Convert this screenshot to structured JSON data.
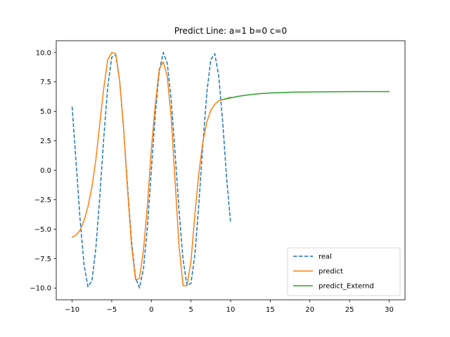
{
  "chart_data": {
    "type": "line",
    "title": "Predict Line: a=1 b=0 c=0",
    "xlabel": "",
    "ylabel": "",
    "xlim": [
      -12,
      32
    ],
    "ylim": [
      -11.0,
      11.0
    ],
    "xticks": [
      -10,
      -5,
      0,
      5,
      10,
      15,
      20,
      25,
      30
    ],
    "yticks": [
      -10.0,
      -7.5,
      -5.0,
      -2.5,
      0.0,
      2.5,
      5.0,
      7.5,
      10.0
    ],
    "xtick_labels": [
      "−10",
      "−5",
      "0",
      "5",
      "10",
      "15",
      "20",
      "25",
      "30"
    ],
    "ytick_labels": [
      "−10.0",
      "−7.5",
      "−5.0",
      "−2.5",
      "0.0",
      "2.5",
      "5.0",
      "7.5",
      "10.0"
    ],
    "grid": false,
    "legend_position": "lower-right",
    "series": [
      {
        "name": "real",
        "color": "#1f77b4",
        "dash": "dashed",
        "x": [
          -10,
          -9.5,
          -9,
          -8.5,
          -8,
          -7.5,
          -7,
          -6.5,
          -6,
          -5.5,
          -5,
          -4.5,
          -4,
          -3.5,
          -3,
          -2.5,
          -2,
          -1.5,
          -1,
          -0.5,
          0,
          0.5,
          1,
          1.5,
          2,
          2.5,
          3,
          3.5,
          4,
          4.5,
          5,
          5.5,
          6,
          6.5,
          7,
          7.5,
          8,
          8.5,
          9,
          9.5,
          10
        ],
        "y": [
          5.4,
          0.7,
          -4.1,
          -8.0,
          -9.9,
          -9.4,
          -6.6,
          -2.2,
          2.8,
          7.1,
          9.6,
          9.8,
          7.6,
          3.5,
          -1.4,
          -6.0,
          -9.1,
          -10.0,
          -8.4,
          -4.8,
          0.0,
          4.8,
          8.4,
          10.0,
          9.1,
          6.0,
          1.4,
          -3.5,
          -7.6,
          -9.8,
          -9.6,
          -7.1,
          -2.8,
          2.2,
          6.6,
          9.4,
          9.9,
          8.0,
          4.1,
          -0.7,
          -4.5
        ]
      },
      {
        "name": "predict",
        "color": "#ff7f0e",
        "dash": "solid",
        "x": [
          -10,
          -9.5,
          -9,
          -8.5,
          -8,
          -7.5,
          -7,
          -6.5,
          -6,
          -5.5,
          -5,
          -4.5,
          -4,
          -3.5,
          -3,
          -2.5,
          -2,
          -1.5,
          -1,
          -0.5,
          0,
          0.5,
          1,
          1.5,
          2,
          2.5,
          3,
          3.5,
          4,
          4.5,
          5,
          5.5,
          6,
          6.5,
          7,
          7.5,
          8,
          8.5,
          9,
          9.5,
          10
        ],
        "y": [
          -5.7,
          -5.5,
          -5.1,
          -4.3,
          -3.1,
          -1.4,
          0.9,
          4.0,
          7.0,
          9.4,
          10.0,
          9.9,
          7.6,
          3.5,
          -1.7,
          -6.4,
          -9.3,
          -9.2,
          -6.8,
          -3.0,
          1.8,
          5.6,
          8.6,
          9.2,
          8.0,
          4.5,
          -1.0,
          -6.5,
          -9.8,
          -9.8,
          -7.7,
          -3.7,
          -0.2,
          2.4,
          4.1,
          5.1,
          5.6,
          5.9,
          6.0,
          6.1,
          6.2
        ]
      },
      {
        "name": "predict_Externd",
        "color": "#2ca02c",
        "dash": "solid",
        "x": [
          9,
          10,
          11,
          12,
          13,
          14,
          15,
          16,
          17,
          18,
          19,
          20,
          22,
          24,
          26,
          28,
          30
        ],
        "y": [
          6.0,
          6.15,
          6.28,
          6.38,
          6.46,
          6.52,
          6.56,
          6.59,
          6.61,
          6.63,
          6.64,
          6.65,
          6.66,
          6.67,
          6.68,
          6.68,
          6.68
        ]
      }
    ]
  }
}
